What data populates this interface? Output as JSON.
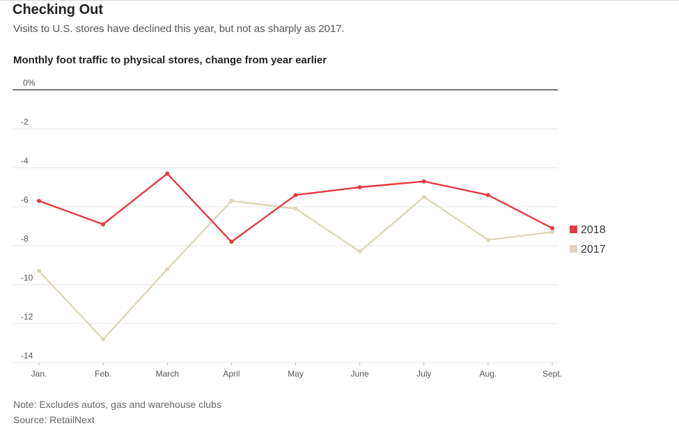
{
  "header": {
    "title": "Checking Out",
    "subtitle": "Visits to U.S. stores have declined this year, but not as sharply as 2017."
  },
  "footer": {
    "note": "Note: Excludes autos, gas and warehouse clubs",
    "source": "Source: RetailNext"
  },
  "colors": {
    "series_2018": "#e8393f",
    "series_2017": "#ded6b8",
    "grid": "#e6e6e6",
    "zero_line": "#222222",
    "tick_text": "#555555"
  },
  "chart_data": {
    "type": "line",
    "title": "Monthly foot traffic to physical stores, change from year earlier",
    "xlabel": "",
    "ylabel": "",
    "categories": [
      "Jan.",
      "Feb.",
      "March",
      "April",
      "May",
      "June",
      "July",
      "Aug.",
      "Sept."
    ],
    "ylim": [
      -14,
      0
    ],
    "yticks": [
      {
        "value": 0,
        "label": "0%"
      },
      {
        "value": -2,
        "label": "-2"
      },
      {
        "value": -4,
        "label": "-4"
      },
      {
        "value": -6,
        "label": "-6"
      },
      {
        "value": -8,
        "label": "-8"
      },
      {
        "value": -10,
        "label": "-10"
      },
      {
        "value": -12,
        "label": "-12"
      },
      {
        "value": -14,
        "label": "-14"
      }
    ],
    "grid": true,
    "legend_position": "right",
    "series": [
      {
        "name": "2018",
        "color": "#e8393f",
        "values": [
          -5.7,
          -6.9,
          -4.3,
          -7.8,
          -5.4,
          -5.0,
          -4.7,
          -5.4,
          -7.1
        ]
      },
      {
        "name": "2017",
        "color": "#ded6b8",
        "values": [
          -9.3,
          -12.8,
          -9.2,
          -5.7,
          -6.1,
          -8.3,
          -5.5,
          -7.7,
          -7.3
        ]
      }
    ]
  }
}
